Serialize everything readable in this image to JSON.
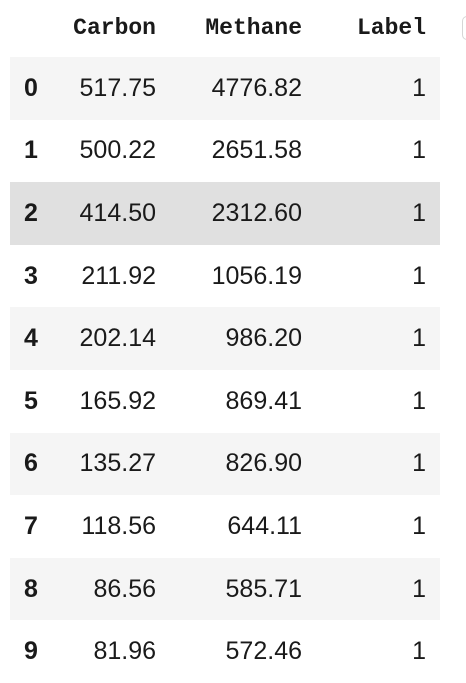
{
  "dataframe": {
    "columns": [
      "",
      "Carbon",
      "Methane",
      "Label"
    ],
    "rows": [
      {
        "index": "0",
        "carbon": "517.75",
        "methane": "4776.82",
        "label": "1"
      },
      {
        "index": "1",
        "carbon": "500.22",
        "methane": "2651.58",
        "label": "1"
      },
      {
        "index": "2",
        "carbon": "414.50",
        "methane": "2312.60",
        "label": "1",
        "hovered": true
      },
      {
        "index": "3",
        "carbon": "211.92",
        "methane": "1056.19",
        "label": "1"
      },
      {
        "index": "4",
        "carbon": "202.14",
        "methane": "986.20",
        "label": "1"
      },
      {
        "index": "5",
        "carbon": "165.92",
        "methane": "869.41",
        "label": "1"
      },
      {
        "index": "6",
        "carbon": "135.27",
        "methane": "826.90",
        "label": "1"
      },
      {
        "index": "7",
        "carbon": "118.56",
        "methane": "644.11",
        "label": "1"
      },
      {
        "index": "8",
        "carbon": "86.56",
        "methane": "585.71",
        "label": "1"
      },
      {
        "index": "9",
        "carbon": "81.96",
        "methane": "572.46",
        "label": "1"
      }
    ]
  },
  "colors": {
    "stripe": "#f5f5f5",
    "hover": "#e0e0e0",
    "text": "#1a1a1a"
  }
}
